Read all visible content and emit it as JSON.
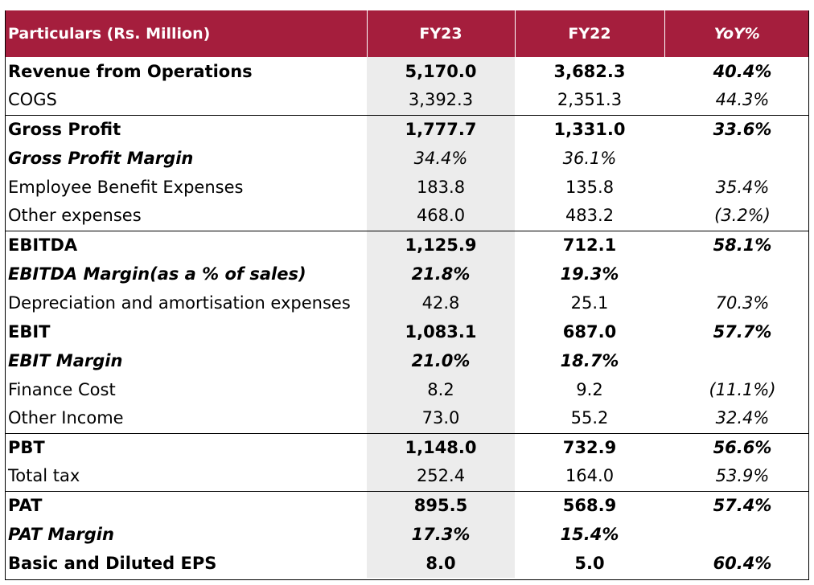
{
  "table": {
    "headers": {
      "particulars": "Particulars (Rs. Million)",
      "fy23": "FY23",
      "fy22": "FY22",
      "yoy": "YoY%"
    },
    "rows": [
      {
        "label": "Revenue from Operations",
        "fy23": "5,170.0",
        "fy22": "3,682.3",
        "yoy": "40.4%"
      },
      {
        "label": "COGS",
        "fy23": "3,392.3",
        "fy22": "2,351.3",
        "yoy": "44.3%"
      },
      {
        "label": "Gross Profit",
        "fy23": "1,777.7",
        "fy22": "1,331.0",
        "yoy": "33.6%"
      },
      {
        "label": "Gross Profit Margin",
        "fy23": "34.4%",
        "fy22": "36.1%",
        "yoy": ""
      },
      {
        "label": "Employee Benefit Expenses",
        "fy23": "183.8",
        "fy22": "135.8",
        "yoy": "35.4%"
      },
      {
        "label": "Other expenses",
        "fy23": "468.0",
        "fy22": "483.2",
        "yoy": "(3.2%)"
      },
      {
        "label": "EBITDA",
        "fy23": "1,125.9",
        "fy22": "712.1",
        "yoy": "58.1%"
      },
      {
        "label": "EBITDA Margin(as a % of sales)",
        "fy23": "21.8%",
        "fy22": "19.3%",
        "yoy": ""
      },
      {
        "label": "Depreciation and amortisation expenses",
        "fy23": "42.8",
        "fy22": "25.1",
        "yoy": "70.3%"
      },
      {
        "label": "EBIT",
        "fy23": "1,083.1",
        "fy22": "687.0",
        "yoy": "57.7%"
      },
      {
        "label": "EBIT Margin",
        "fy23": "21.0%",
        "fy22": "18.7%",
        "yoy": ""
      },
      {
        "label": "Finance Cost",
        "fy23": "8.2",
        "fy22": "9.2",
        "yoy": "(11.1%)"
      },
      {
        "label": "Other Income",
        "fy23": "73.0",
        "fy22": "55.2",
        "yoy": "32.4%"
      },
      {
        "label": "PBT",
        "fy23": "1,148.0",
        "fy22": "732.9",
        "yoy": "56.6%"
      },
      {
        "label": "Total tax",
        "fy23": "252.4",
        "fy22": "164.0",
        "yoy": "53.9%"
      },
      {
        "label": "PAT",
        "fy23": "895.5",
        "fy22": "568.9",
        "yoy": "57.4%"
      },
      {
        "label": "PAT Margin",
        "fy23": "17.3%",
        "fy22": "15.4%",
        "yoy": ""
      },
      {
        "label": "Basic and Diluted EPS",
        "fy23": "8.0",
        "fy22": "5.0",
        "yoy": "60.4%"
      }
    ]
  },
  "colors": {
    "header_background": "#a51e3d",
    "header_text": "#ffffff",
    "fy23_column_shade": "#ececec"
  }
}
